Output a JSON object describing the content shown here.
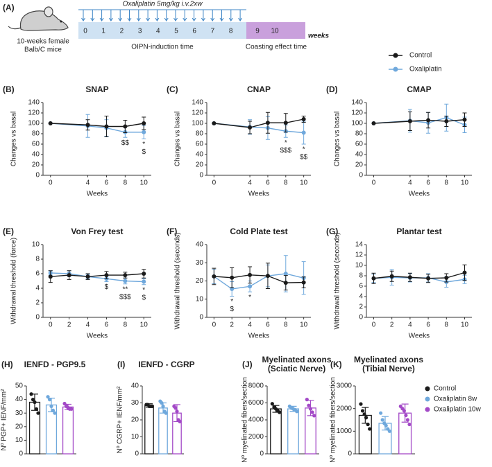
{
  "timeline": {
    "panel": "(A)",
    "dose": "Oxaliplatin 5mg/kg i.v.2xw",
    "induction_weeks": [
      "0",
      "1",
      "2",
      "3",
      "4",
      "5",
      "6",
      "7",
      "8"
    ],
    "coasting_weeks": [
      "9",
      "10"
    ],
    "unit": "weeks",
    "mouse": [
      "10-weeks female",
      "Balb/C mice"
    ],
    "induction_label": "OIPN-induction time",
    "coasting_label": "Coasting effect time"
  },
  "chart_data": [
    {
      "type": "line",
      "panel": "(B)",
      "title": "SNAP",
      "xlabel": "Weeks",
      "ylabel": "Changes vs basal",
      "x": [
        0,
        4,
        6,
        8,
        10
      ],
      "xlim": [
        -0.8,
        10.8
      ],
      "xticks": [
        0,
        4,
        6,
        8,
        10
      ],
      "ylim": [
        0,
        140
      ],
      "yticks": [
        0,
        20,
        40,
        60,
        80,
        100,
        120,
        140
      ],
      "series": [
        {
          "name": "Control",
          "color": "#1a1a1a",
          "values": [
            100,
            97,
            94,
            94,
            100
          ],
          "errors": [
            0,
            10,
            20,
            12,
            12
          ]
        },
        {
          "name": "Oxaliplatin",
          "color": "#6fa8dc",
          "values": [
            100,
            95,
            91,
            83,
            83
          ],
          "errors": [
            0,
            22,
            16,
            10,
            13
          ]
        }
      ],
      "annotations": [
        {
          "x": 8,
          "labels": [
            "$$"
          ]
        },
        {
          "x": 10,
          "labels": [
            "*",
            "$"
          ]
        }
      ]
    },
    {
      "type": "line",
      "panel": "(C)",
      "title": "CNAP",
      "xlabel": "Weeks",
      "ylabel": "Changes vs basal",
      "x": [
        0,
        4,
        6,
        8,
        10
      ],
      "xlim": [
        -0.8,
        10.8
      ],
      "xticks": [
        0,
        4,
        6,
        8,
        10
      ],
      "ylim": [
        0,
        140
      ],
      "yticks": [
        0,
        20,
        40,
        60,
        80,
        100,
        120,
        140
      ],
      "series": [
        {
          "name": "Control",
          "color": "#1a1a1a",
          "values": [
            100,
            92,
            101,
            101,
            108
          ],
          "errors": [
            0,
            12,
            20,
            18,
            6
          ]
        },
        {
          "name": "Oxaliplatin",
          "color": "#6fa8dc",
          "values": [
            100,
            93,
            91,
            85,
            82
          ],
          "errors": [
            0,
            14,
            22,
            12,
            22
          ]
        }
      ],
      "annotations": [
        {
          "x": 8,
          "labels": [
            "*",
            "$$$"
          ]
        },
        {
          "x": 10,
          "labels": [
            "*",
            "$$"
          ]
        }
      ]
    },
    {
      "type": "line",
      "panel": "(D)",
      "title": "CMAP",
      "xlabel": "Weeks",
      "ylabel": "Changes vs basal",
      "x": [
        0,
        4,
        6,
        8,
        10
      ],
      "xlim": [
        -0.8,
        10.8
      ],
      "xticks": [
        0,
        4,
        6,
        8,
        10
      ],
      "ylim": [
        0,
        140
      ],
      "yticks": [
        0,
        20,
        40,
        60,
        80,
        100,
        120,
        140
      ],
      "series": [
        {
          "name": "Control",
          "color": "#1a1a1a",
          "values": [
            100,
            104,
            106,
            104,
            107
          ],
          "errors": [
            0,
            18,
            15,
            10,
            13
          ]
        },
        {
          "name": "Oxaliplatin",
          "color": "#6fa8dc",
          "values": [
            100,
            105,
            101,
            111,
            97
          ],
          "errors": [
            0,
            22,
            20,
            26,
            15
          ]
        }
      ],
      "annotations": []
    },
    {
      "type": "line",
      "panel": "(E)",
      "title": "Von Frey test",
      "xlabel": "Weeks",
      "ylabel": "Withdrawal threshold  (force)",
      "x": [
        0,
        2,
        4,
        6,
        8,
        10
      ],
      "xlim": [
        -0.8,
        10.8
      ],
      "xticks": [
        0,
        2,
        4,
        6,
        8,
        10
      ],
      "ylim": [
        0,
        10
      ],
      "yticks": [
        0,
        2,
        4,
        6,
        8,
        10
      ],
      "series": [
        {
          "name": "Control",
          "color": "#1a1a1a",
          "values": [
            5.6,
            5.8,
            5.6,
            5.8,
            5.8,
            6.0
          ],
          "errors": [
            0.8,
            0.6,
            0.4,
            0.5,
            0.4,
            0.6
          ]
        },
        {
          "name": "Oxaliplatin",
          "color": "#6fa8dc",
          "values": [
            6.1,
            6.0,
            5.6,
            5.3,
            5.0,
            4.9
          ],
          "errors": [
            0.3,
            0.4,
            0.3,
            0.4,
            0.4,
            0.4
          ]
        }
      ],
      "annotations": [
        {
          "x": 6,
          "labels": [
            "$"
          ]
        },
        {
          "x": 8,
          "labels": [
            "**",
            "$$$"
          ]
        },
        {
          "x": 10,
          "labels": [
            "*",
            "$"
          ]
        }
      ]
    },
    {
      "type": "line",
      "panel": "(F)",
      "title": "Cold Plate test",
      "xlabel": "Weeks",
      "ylabel": "Withdrawal threshold  (seconds)",
      "x": [
        0,
        2,
        4,
        6,
        8,
        10
      ],
      "xlim": [
        -0.8,
        10.8
      ],
      "xticks": [
        0,
        2,
        4,
        6,
        8,
        10
      ],
      "ylim": [
        0,
        40
      ],
      "yticks": [
        0,
        10,
        20,
        30,
        40
      ],
      "series": [
        {
          "name": "Control",
          "color": "#1a1a1a",
          "values": [
            22.5,
            21.8,
            23.3,
            22.8,
            19,
            19.2
          ],
          "errors": [
            4.5,
            5.5,
            4.5,
            7,
            4,
            3
          ]
        },
        {
          "name": "Oxaliplatin",
          "color": "#6fa8dc",
          "values": [
            22.5,
            15.6,
            17,
            22.8,
            24,
            21.6
          ],
          "errors": [
            4,
            4,
            3,
            6,
            10,
            9
          ]
        }
      ],
      "annotations": [
        {
          "x": 2,
          "labels": [
            "*",
            "$"
          ]
        },
        {
          "x": 4,
          "labels": [
            "*"
          ]
        }
      ]
    },
    {
      "type": "line",
      "panel": "(G)",
      "title": "Plantar test",
      "xlabel": "Weeks",
      "ylabel": "Withdrawal threshold  (seconds)",
      "x": [
        0,
        2,
        4,
        6,
        8,
        10
      ],
      "xlim": [
        -0.8,
        10.8
      ],
      "xticks": [
        0,
        2,
        4,
        6,
        8,
        10
      ],
      "ylim": [
        0,
        14
      ],
      "yticks": [
        0,
        2,
        4,
        6,
        8,
        10,
        12,
        14
      ],
      "series": [
        {
          "name": "Control",
          "color": "#1a1a1a",
          "values": [
            7.5,
            7.9,
            7.7,
            7.5,
            7.6,
            8.6
          ],
          "errors": [
            1,
            1,
            0.8,
            0.8,
            0.8,
            1.5
          ]
        },
        {
          "name": "Oxaliplatin",
          "color": "#6fa8dc",
          "values": [
            7.5,
            7.7,
            7.6,
            7.6,
            6.8,
            7.3
          ],
          "errors": [
            0.8,
            1.5,
            0.8,
            0.8,
            1,
            0.8
          ]
        }
      ],
      "annotations": []
    },
    {
      "type": "bar",
      "panel": "(H)",
      "title": "IENFD - PGP9.5",
      "ylabel": "Nº PGP+ IENF/mm²",
      "ylim": [
        0,
        50
      ],
      "yticks": [
        0,
        10,
        20,
        30,
        40,
        50
      ],
      "series": [
        {
          "name": "Control",
          "color": "#1a1a1a",
          "value": 38,
          "error": 6,
          "points": [
            44,
            40,
            38,
            33,
            30
          ]
        },
        {
          "name": "Oxaliplatin 8w",
          "color": "#6fa8dc",
          "value": 36,
          "error": 5,
          "points": [
            42,
            40,
            35,
            32,
            30
          ]
        },
        {
          "name": "Oxaliplatin 10w",
          "color": "#a349c7",
          "value": 34.5,
          "error": 2,
          "points": [
            37,
            35,
            34,
            33,
            33
          ]
        }
      ]
    },
    {
      "type": "bar",
      "panel": "(I)",
      "title": "IENFD - CGRP",
      "ylabel": "Nº CGRP+ IENF/mm²",
      "ylim": [
        0,
        40
      ],
      "yticks": [
        0,
        10,
        20,
        30,
        40
      ],
      "series": [
        {
          "name": "Control",
          "color": "#1a1a1a",
          "value": 28.5,
          "error": 1,
          "points": [
            29,
            29,
            28,
            28,
            28
          ]
        },
        {
          "name": "Oxaliplatin 8w",
          "color": "#6fa8dc",
          "value": 27,
          "error": 3,
          "points": [
            31,
            30,
            28,
            25,
            24
          ]
        },
        {
          "name": "Oxaliplatin 10w",
          "color": "#a349c7",
          "value": 24,
          "error": 5,
          "points": [
            28,
            27,
            25,
            20,
            19
          ]
        }
      ]
    },
    {
      "type": "bar",
      "panel": "(J)",
      "title": [
        "Myelinated axons",
        "(Sciatic Nerve)"
      ],
      "ylabel": "Nº myelinated fibers/section",
      "ylim": [
        0,
        8000
      ],
      "yticks": [
        0,
        2000,
        4000,
        6000,
        8000
      ],
      "series": [
        {
          "name": "Control",
          "color": "#1a1a1a",
          "value": 5300,
          "error": 400,
          "points": [
            5900,
            5500,
            5300,
            5100,
            4900
          ]
        },
        {
          "name": "Oxaliplatin 8w",
          "color": "#6fa8dc",
          "value": 5300,
          "error": 300,
          "points": [
            5600,
            5400,
            5300,
            5200,
            5000
          ]
        },
        {
          "name": "Oxaliplatin 10w",
          "color": "#a349c7",
          "value": 5400,
          "error": 900,
          "points": [
            6400,
            5700,
            5300,
            4900,
            4500
          ]
        }
      ]
    },
    {
      "type": "bar",
      "panel": "(K)",
      "title": [
        "Myelinated axons",
        "(Tibial Nerve)"
      ],
      "ylabel": "Nº myelinated fibers/section",
      "ylim": [
        0,
        3000
      ],
      "yticks": [
        0,
        1000,
        2000,
        3000
      ],
      "series": [
        {
          "name": "Control",
          "color": "#1a1a1a",
          "value": 1700,
          "error": 350,
          "points": [
            2200,
            1900,
            1750,
            1600,
            1300,
            1100
          ]
        },
        {
          "name": "Oxaliplatin 8w",
          "color": "#6fa8dc",
          "value": 1350,
          "error": 300,
          "points": [
            1800,
            1500,
            1350,
            1250,
            1100,
            1000
          ]
        },
        {
          "name": "Oxaliplatin 10w",
          "color": "#a349c7",
          "value": 1800,
          "error": 400,
          "points": [
            2100,
            2000,
            1900,
            1700,
            1500,
            1300
          ]
        }
      ]
    }
  ]
}
